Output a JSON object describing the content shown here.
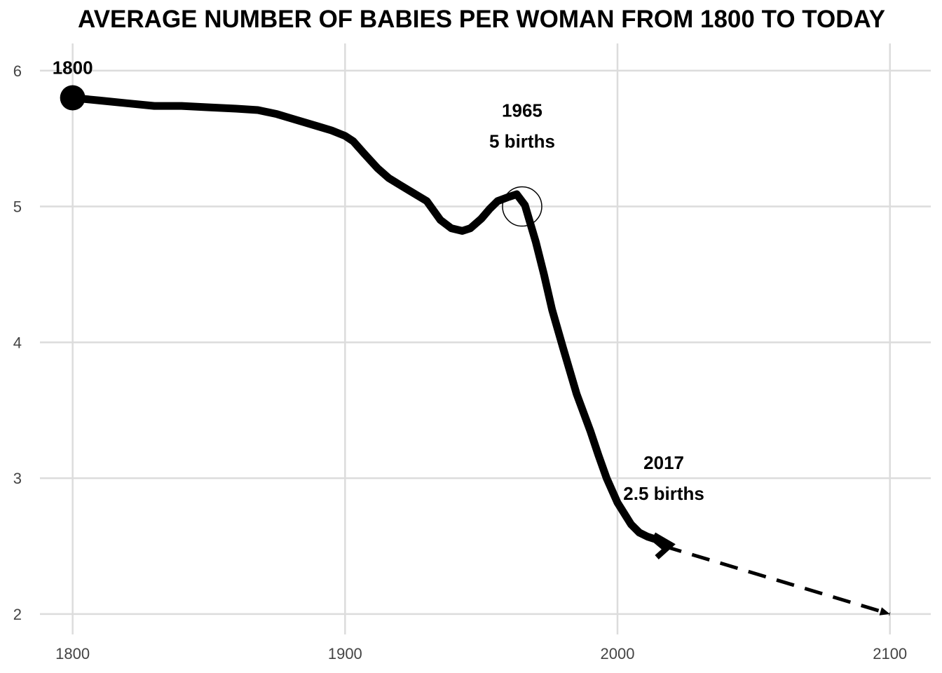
{
  "chart_data": {
    "type": "line",
    "title": "AVERAGE NUMBER OF BABIES PER WOMAN FROM 1800 TO TODAY",
    "xlabel": "",
    "ylabel": "",
    "xlim": [
      1788,
      2115
    ],
    "ylim": [
      1.85,
      6.2
    ],
    "x_ticks": [
      "1800",
      "1900",
      "2000",
      "2100"
    ],
    "y_ticks": [
      "2",
      "3",
      "4",
      "5",
      "6"
    ],
    "grid": true,
    "series": [
      {
        "style": "solid",
        "x": [
          1800,
          1810,
          1820,
          1830,
          1840,
          1850,
          1860,
          1868,
          1875,
          1880,
          1890,
          1895,
          1900,
          1903,
          1907,
          1912,
          1916,
          1920,
          1925,
          1930,
          1935,
          1939,
          1943,
          1946,
          1950,
          1953,
          1956,
          1960,
          1963,
          1966,
          1970,
          1973,
          1976,
          1980,
          1985,
          1990,
          1993,
          1996,
          2000,
          2005,
          2008,
          2011,
          2014,
          2017
        ],
        "values": [
          5.8,
          5.78,
          5.76,
          5.74,
          5.74,
          5.73,
          5.72,
          5.71,
          5.68,
          5.65,
          5.59,
          5.56,
          5.52,
          5.48,
          5.39,
          5.28,
          5.21,
          5.16,
          5.1,
          5.04,
          4.9,
          4.84,
          4.82,
          4.84,
          4.91,
          4.98,
          5.04,
          5.07,
          5.09,
          5.01,
          4.74,
          4.5,
          4.24,
          3.96,
          3.62,
          3.35,
          3.17,
          3.0,
          2.82,
          2.66,
          2.6,
          2.57,
          2.55,
          2.5
        ]
      },
      {
        "style": "dashed",
        "x": [
          2017,
          2100
        ],
        "values": [
          2.5,
          2.0
        ]
      }
    ],
    "annotations": [
      {
        "id": "a1800",
        "lines": [
          "1800"
        ],
        "x": 1800,
        "y": 5.8,
        "marker": "filled-circle"
      },
      {
        "id": "a1965",
        "lines": [
          "1965",
          "5 births"
        ],
        "x": 1965,
        "y": 5.0,
        "marker": "open-circle"
      },
      {
        "id": "a2017",
        "lines": [
          "2017",
          "2.5 births"
        ],
        "x": 2017,
        "y": 2.5,
        "marker": "arrow"
      }
    ]
  }
}
